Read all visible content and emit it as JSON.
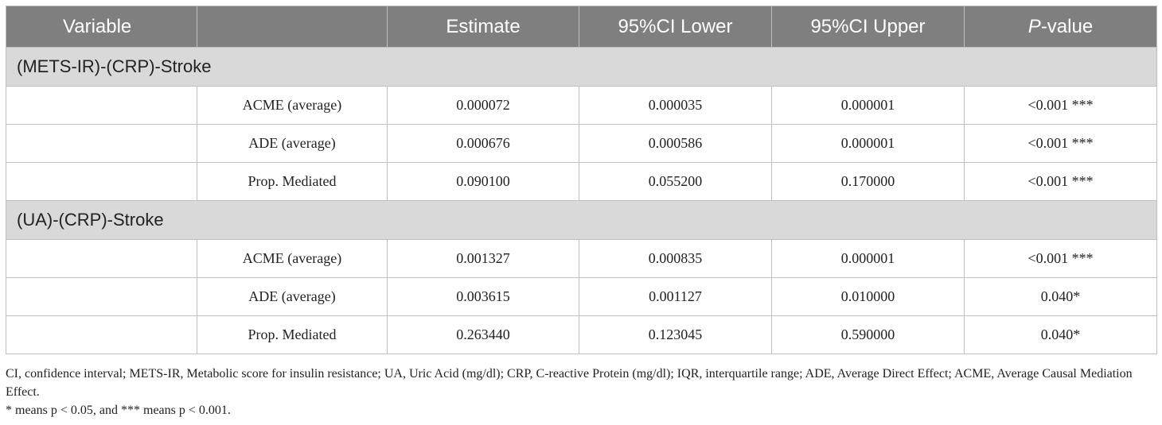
{
  "header": {
    "variable": "Variable",
    "blank": "",
    "estimate": "Estimate",
    "ci_lower": "95%CI Lower",
    "ci_upper": "95%CI Upper",
    "p_italic": "P",
    "p_rest": "-value"
  },
  "groups": [
    {
      "label": "(METS-IR)-(CRP)-Stroke",
      "rows": [
        {
          "measure": "ACME (average)",
          "estimate": "0.000072",
          "lower": "0.000035",
          "upper": "0.000001",
          "p": "<0.001 ***"
        },
        {
          "measure": "ADE (average)",
          "estimate": "0.000676",
          "lower": "0.000586",
          "upper": "0.000001",
          "p": "<0.001 ***"
        },
        {
          "measure": "Prop. Mediated",
          "estimate": "0.090100",
          "lower": "0.055200",
          "upper": "0.170000",
          "p": "<0.001 ***"
        }
      ]
    },
    {
      "label": "(UA)-(CRP)-Stroke",
      "rows": [
        {
          "measure": "ACME (average)",
          "estimate": "0.001327",
          "lower": "0.000835",
          "upper": "0.000001",
          "p": "<0.001 ***"
        },
        {
          "measure": "ADE (average)",
          "estimate": "0.003615",
          "lower": "0.001127",
          "upper": "0.010000",
          "p": "0.040*"
        },
        {
          "measure": "Prop. Mediated",
          "estimate": "0.263440",
          "lower": "0.123045",
          "upper": "0.590000",
          "p": "0.040*"
        }
      ]
    }
  ],
  "footnotes": {
    "abbreviations": "CI, confidence interval; METS-IR, Metabolic score for insulin resistance; UA, Uric Acid (mg/dl); CRP, C-reactive Protein (mg/dl); IQR, interquartile range; ADE, Average Direct Effect; ACME, Average Causal Mediation Effect.",
    "significance": "* means p < 0.05, and *** means p < 0.001."
  }
}
